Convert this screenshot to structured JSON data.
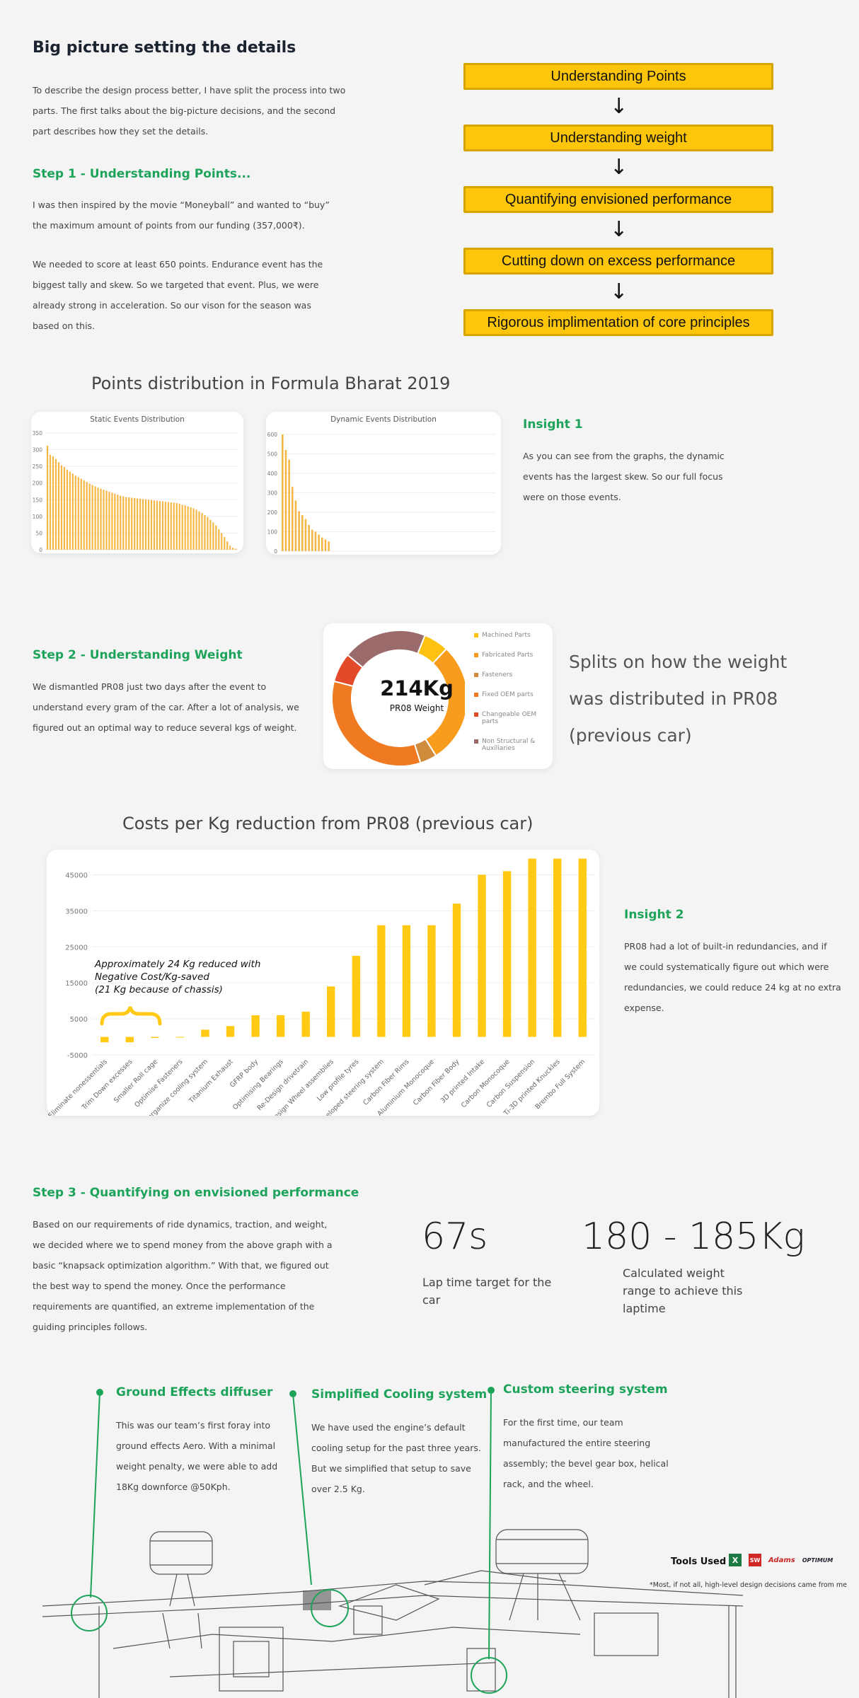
{
  "section1": {
    "heading": "Big picture setting the details",
    "intro": [
      "To describe the design process better, I have split the process into two",
      "parts. The first talks about the big-picture decisions, and the second",
      "part describes how they set the details."
    ],
    "step1_title": "Step 1 - Understanding Points...",
    "step1_p1": [
      "I was then inspired by the movie “Moneyball” and wanted to “buy”",
      "the maximum amount of points from our funding (357,000₹)."
    ],
    "step1_p2": [
      "We needed to score at least 650 points. Endurance event has the",
      "biggest tally and skew. So we targeted that event. Plus, we were",
      "already strong in acceleration. So our vison for the season was",
      "based on this."
    ]
  },
  "flow": [
    "Understanding Points",
    "Understanding weight",
    "Quantifying envisioned performance",
    "Cutting down on excess performance",
    "Rigorous implimentation of core principles"
  ],
  "points_title": "Points distribution in Formula Bharat 2019",
  "insight1": {
    "title": "Insight 1",
    "text": [
      "As you can see from the graphs, the dynamic",
      "events has the largest skew. So our full focus",
      "were on those events."
    ]
  },
  "step2": {
    "title": "Step 2 - Understanding Weight",
    "text": [
      "We dismantled PR08 just two days after the event to",
      "understand every gram of the car. After a lot of analysis, we",
      "figured out an optimal way to reduce several kgs of weight."
    ]
  },
  "weight_side_text": [
    "Splits on how the weight",
    "was distributed in PR08",
    "(previous car)"
  ],
  "costs_title": "Costs per Kg reduction from PR08 (previous car)",
  "costs_annotation": [
    "Approximately 24 Kg reduced with",
    "Negative Cost/Kg-saved",
    "(21 Kg because of chassis)"
  ],
  "insight2": {
    "title": "Insight 2",
    "text": [
      "PR08 had a lot of built-in redundancies, and if",
      "we could systematically figure out which were",
      "redundancies, we could reduce 24 kg at no extra",
      "expense."
    ]
  },
  "step3": {
    "title": "Step 3 - Quantifying on envisioned performance",
    "text": [
      "Based on our requirements of ride dynamics, traction, and weight,",
      "we decided where we to spend money from the above graph with a",
      "basic “knapsack optimization algorithm.” With that, we figured out",
      "the best way to spend the money. Once the performance",
      "requirements are quantified, an extreme implementation of the",
      "guiding principles follows."
    ]
  },
  "stats": [
    {
      "value": "67s",
      "label": [
        "Lap time target for the",
        "car"
      ]
    },
    {
      "value": "180 - 185Kg",
      "label": [
        "Calculated weight",
        "range to achieve this",
        "laptime"
      ]
    }
  ],
  "features": [
    {
      "title": "Ground Effects diffuser",
      "text": [
        "This was our team’s first foray into",
        "ground effects Aero. With a minimal",
        "weight penalty, we were able to add",
        "18Kg downforce @50Kph."
      ]
    },
    {
      "title": "Simplified Cooling system",
      "text": [
        "We have used the engine’s default",
        "cooling setup for the past three years.",
        "But we simplified that setup to save",
        "over 2.5 Kg."
      ]
    },
    {
      "title": "Custom steering system",
      "text": [
        "For the first time, our team",
        "manufactured the entire steering",
        "assembly; the bevel gear box, helical",
        "rack, and the wheel."
      ]
    }
  ],
  "tools": {
    "label": "Tools Used",
    "note": "*Most, if not all, high-level design decisions came from me",
    "icons": [
      "excel-icon",
      "solidworks-icon",
      "adams-icon",
      "optimum-icon"
    ],
    "icon_text": [
      "X",
      "SW",
      "Adams",
      "OPTIMUM"
    ]
  },
  "chart_data": [
    {
      "type": "bar",
      "title": "Static Events Distribution",
      "ylim": [
        0,
        350
      ],
      "yticks": [
        "0",
        "50",
        "100",
        "150",
        "200",
        "250",
        "300",
        "350"
      ],
      "values": [
        312,
        285,
        280,
        272,
        262,
        253,
        248,
        240,
        234,
        228,
        222,
        218,
        213,
        208,
        203,
        198,
        194,
        190,
        186,
        183,
        180,
        177,
        174,
        171,
        168,
        165,
        162,
        160,
        158,
        157,
        156,
        155,
        154,
        153,
        152,
        151,
        150,
        149,
        148,
        147,
        146,
        145,
        144,
        143,
        142,
        141,
        140,
        138,
        135,
        133,
        130,
        127,
        124,
        120,
        115,
        110,
        104,
        98,
        90,
        82,
        73,
        62,
        50,
        38,
        25,
        12,
        6,
        3
      ],
      "color": "#f5b744"
    },
    {
      "type": "bar",
      "title": "Dynamic Events Distribution",
      "ylim": [
        0,
        600
      ],
      "yticks": [
        "0",
        "100",
        "200",
        "300",
        "400",
        "500",
        "600"
      ],
      "values": [
        600,
        520,
        470,
        330,
        260,
        205,
        185,
        165,
        135,
        110,
        100,
        85,
        70,
        60,
        50
      ],
      "color": "#f5b744"
    },
    {
      "type": "pie",
      "title": "PR08 Weight",
      "center_value": "214Kg",
      "slices": [
        {
          "name": "Machined Parts",
          "value": 6,
          "color": "#fdc20f"
        },
        {
          "name": "Fabricated Parts",
          "value": 29,
          "color": "#f89c1e"
        },
        {
          "name": "Fasteners",
          "value": 4,
          "color": "#d18b3c"
        },
        {
          "name": "Fixed OEM parts",
          "value": 34,
          "color": "#ef7a22"
        },
        {
          "name": "Changeable OEM parts",
          "value": 7,
          "color": "#e24a29"
        },
        {
          "name": "Non Structural & Auxiliaries",
          "value": 20,
          "color": "#9b6b6b"
        }
      ]
    },
    {
      "type": "bar",
      "categories": [
        "Eliminate nonessentials",
        "Trim Down excesses",
        "Smaller Roll cage",
        "Optimise Fasteners",
        "Re-organize cooling system",
        "Titanium Exhaust",
        "GFRP body",
        "Optimising Bearings",
        "Re-Design drivetrain",
        "Redesign Wheel assemblies",
        "Low profile tyres",
        "Developed steering system",
        "Carbon Fiber Rims",
        "Aluminium Monocoque",
        "Carbon Fiber Body",
        "3D printed Intake",
        "Carbon Monocoque",
        "Carbon Suspension",
        "Ti-3D printed Knuckles",
        "Brembo Full System"
      ],
      "values": [
        -1500,
        -1500,
        -300,
        -200,
        2000,
        3000,
        6000,
        6000,
        7000,
        14000,
        22500,
        31000,
        31000,
        31000,
        37000,
        45000,
        46000,
        49500,
        49500,
        49500
      ],
      "ylim": [
        -5000,
        50000
      ],
      "yticks": [
        "-5000",
        "5000",
        "15000",
        "25000",
        "35000",
        "45000"
      ],
      "color": "#ffc914"
    }
  ]
}
